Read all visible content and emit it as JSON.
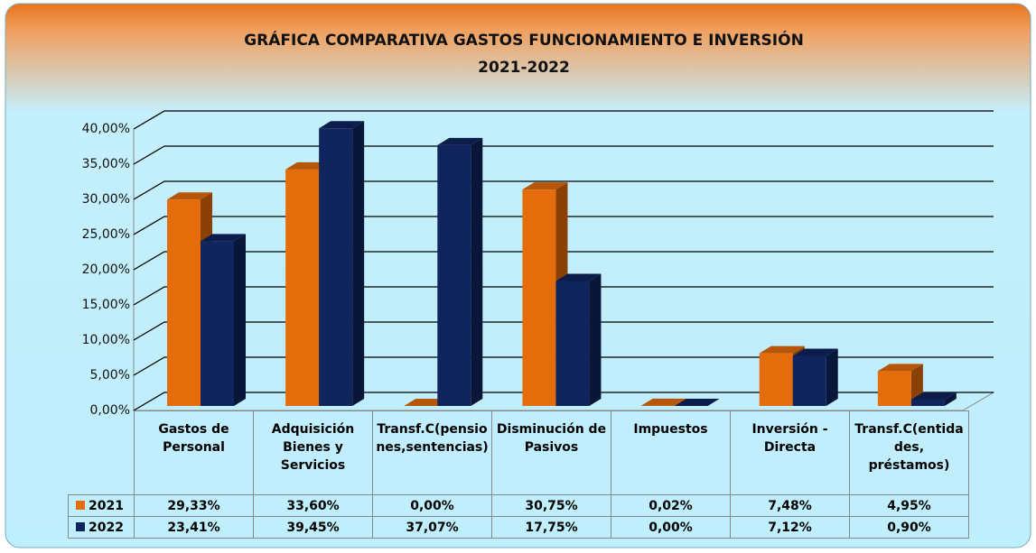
{
  "chart_data": {
    "type": "bar3d",
    "title": "GRÁFICA COMPARATIVA GASTOS FUNCIONAMIENTO E INVERSIÓN",
    "subtitle": "2021-2022",
    "categories": [
      "Gastos de Personal",
      "Adquisición Bienes y Servicios",
      "Transf.C(pensiones,sentencias)",
      "Disminución de Pasivos",
      "Impuestos",
      "Inversión - Directa",
      "Transf.C(entidades, préstamos)"
    ],
    "series": [
      {
        "name": "2021",
        "color": "#e46c0a",
        "values": [
          29.33,
          33.6,
          0.0,
          30.75,
          0.02,
          7.48,
          4.95
        ],
        "value_labels": [
          "29,33%",
          "33,60%",
          "0,00%",
          "30,75%",
          "0,02%",
          "7,48%",
          "4,95%"
        ]
      },
      {
        "name": "2022",
        "color": "#10245e",
        "values": [
          23.41,
          39.45,
          37.07,
          17.75,
          0.0,
          7.12,
          0.9
        ],
        "value_labels": [
          "23,41%",
          "39,45%",
          "37,07%",
          "17,75%",
          "0,00%",
          "7,12%",
          "0,90%"
        ]
      }
    ],
    "ylim": [
      0,
      40
    ],
    "yticks": [
      {
        "value": 0,
        "label": "0,00%"
      },
      {
        "value": 5,
        "label": "5,00%"
      },
      {
        "value": 10,
        "label": "10,00%"
      },
      {
        "value": 15,
        "label": "15,00%"
      },
      {
        "value": 20,
        "label": "20,00%"
      },
      {
        "value": 25,
        "label": "25,00%"
      },
      {
        "value": 30,
        "label": "30,00%"
      },
      {
        "value": 35,
        "label": "35,00%"
      },
      {
        "value": 40,
        "label": "40,00%"
      }
    ],
    "grid": true
  }
}
